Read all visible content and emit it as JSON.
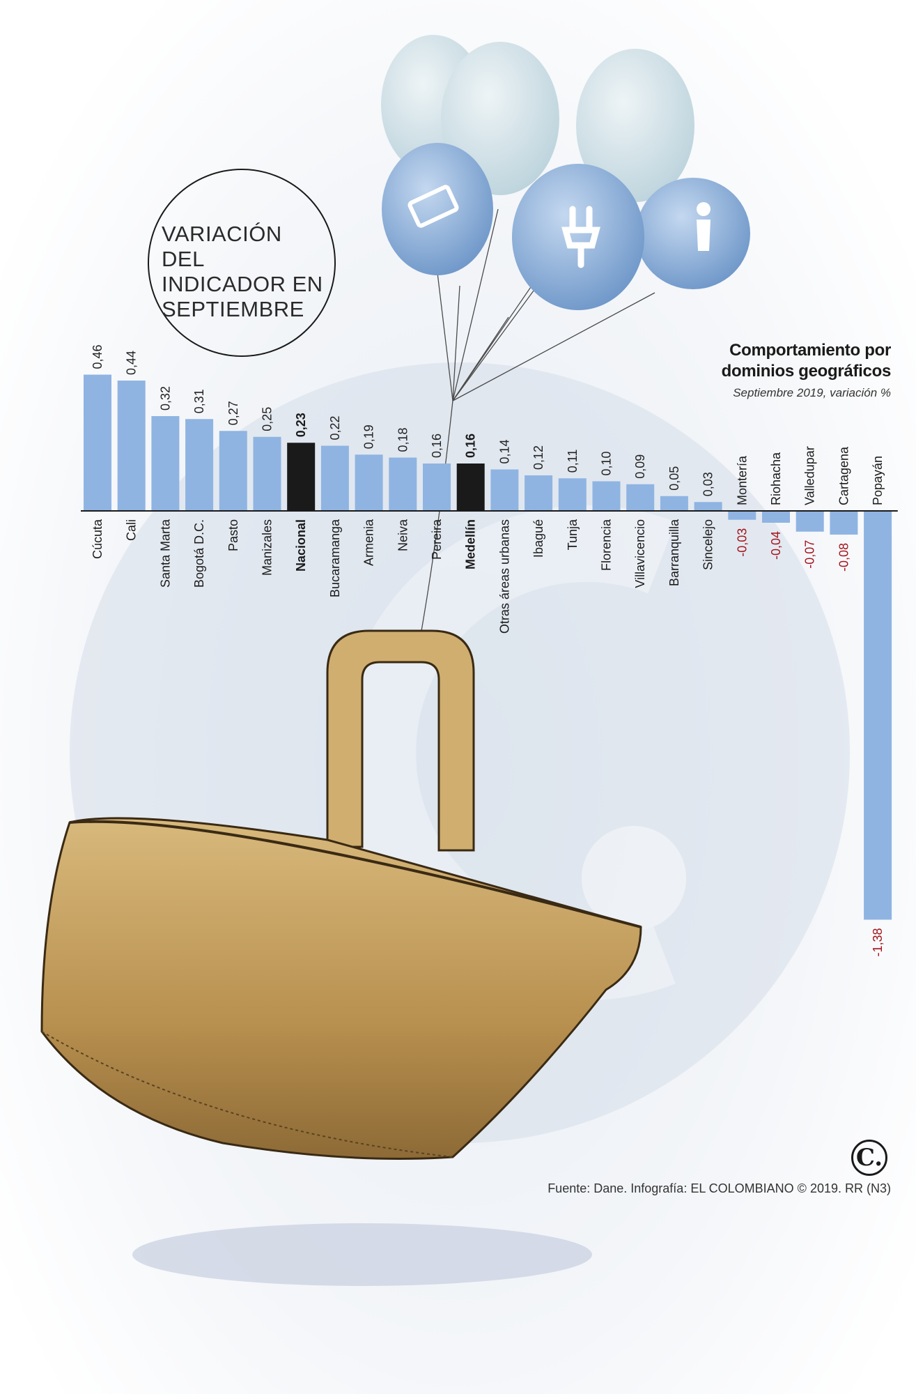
{
  "title": "VARIACIÓN DEL INDICADOR EN SEPTIEMBRE",
  "subtitle": "Comportamiento por dominios geográficos",
  "note": "Septiembre 2019, variación %",
  "source": "Fuente: Dane. Infografía: EL COLOMBIANO © 2019. RR (N3)",
  "logo": "C.",
  "colors": {
    "bar": "#8fb4e2",
    "highlight": "#1a1a1a",
    "negative_label": "#a3131b",
    "text": "#1a1a1a"
  },
  "chart_data": {
    "type": "bar",
    "title": "Comportamiento por dominios geográficos",
    "xlabel": "",
    "ylabel": "",
    "categories": [
      "Cúcuta",
      "Cali",
      "Santa Marta",
      "Bogotá D.C.",
      "Pasto",
      "Manizales",
      "Nacional",
      "Bucaramanga",
      "Armenia",
      "Neiva",
      "Pereira",
      "Medellín",
      "Otras áreas urbanas",
      "Ibagué",
      "Tunja",
      "Florencia",
      "Villavicencio",
      "Barranquilla",
      "Sincelejo",
      "Montería",
      "Riohacha",
      "Valledupar",
      "Cartagena",
      "Popayán"
    ],
    "values": [
      0.46,
      0.44,
      0.32,
      0.31,
      0.27,
      0.25,
      0.23,
      0.22,
      0.19,
      0.18,
      0.16,
      0.16,
      0.14,
      0.12,
      0.11,
      0.1,
      0.09,
      0.05,
      0.03,
      -0.03,
      -0.04,
      -0.07,
      -0.08,
      -1.38
    ],
    "value_labels": [
      "0,46",
      "0,44",
      "0,32",
      "0,31",
      "0,27",
      "0,25",
      "0,23",
      "0,22",
      "0,19",
      "0,18",
      "0,16",
      "0,16",
      "0,14",
      "0,12",
      "0,11",
      "0,10",
      "0,09",
      "0,05",
      "0,03",
      "-0,03",
      "-0,04",
      "-0,07",
      "-0,08",
      "-1,38"
    ],
    "highlighted": [
      "Nacional",
      "Medellín"
    ],
    "ylim": [
      -1.38,
      0.46
    ],
    "grid": false,
    "legend": "none"
  }
}
